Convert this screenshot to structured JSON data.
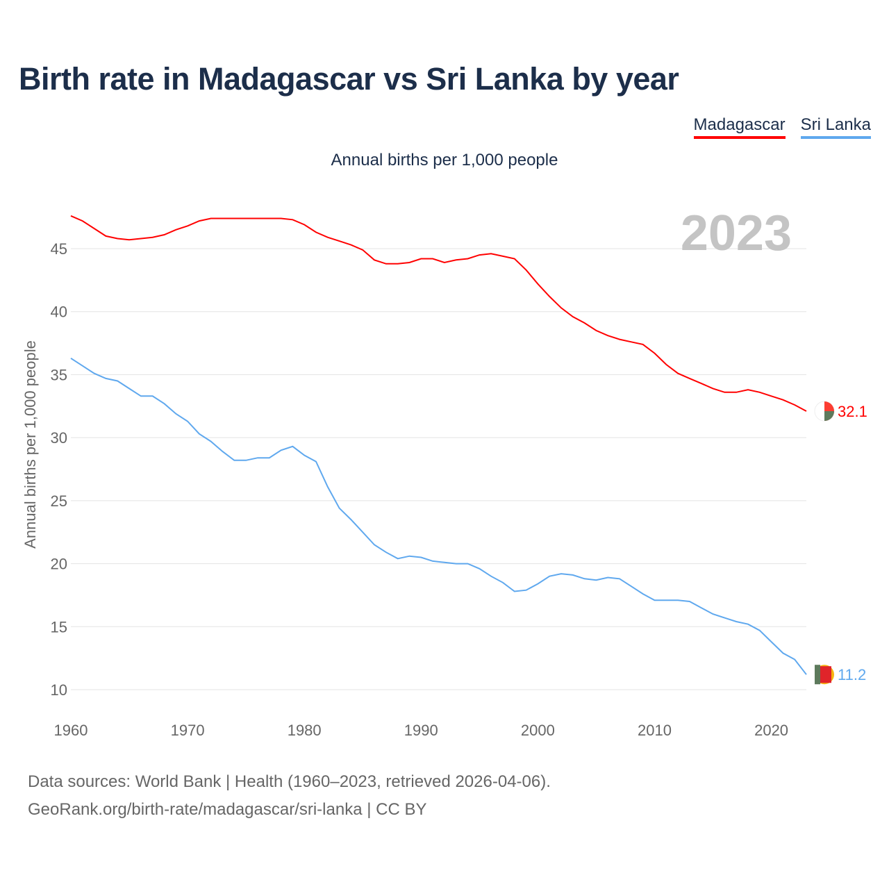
{
  "chart_data": {
    "type": "line",
    "title": "Birth rate in Madagascar vs Sri Lanka by year",
    "subtitle": "Annual births per 1,000 people",
    "ylabel": "Annual births per 1,000 people",
    "xlabel": "",
    "year_label": "2023",
    "xlim": [
      1960,
      2023
    ],
    "ylim": [
      10,
      47.6
    ],
    "x_ticks": [
      1960,
      1970,
      1980,
      1990,
      2000,
      2010,
      2020
    ],
    "y_ticks": [
      10,
      15,
      20,
      25,
      30,
      35,
      40,
      45
    ],
    "grid": true,
    "legend_position": "top-right",
    "x_start": 1960,
    "series": [
      {
        "name": "Madagascar",
        "color": "#ff0000",
        "end_label": "32.1",
        "values": [
          47.6,
          47.2,
          46.6,
          46.0,
          45.8,
          45.7,
          45.8,
          45.9,
          46.1,
          46.5,
          46.8,
          47.2,
          47.4,
          47.4,
          47.4,
          47.4,
          47.4,
          47.4,
          47.4,
          47.3,
          46.9,
          46.3,
          45.9,
          45.6,
          45.3,
          44.9,
          44.1,
          43.8,
          43.8,
          43.9,
          44.2,
          44.2,
          43.9,
          44.1,
          44.2,
          44.5,
          44.6,
          44.4,
          44.2,
          43.3,
          42.2,
          41.2,
          40.3,
          39.6,
          39.1,
          38.5,
          38.1,
          37.8,
          37.6,
          37.4,
          36.7,
          35.8,
          35.1,
          34.7,
          34.3,
          33.9,
          33.6,
          33.6,
          33.8,
          33.6,
          33.3,
          33.0,
          32.6,
          32.1
        ]
      },
      {
        "name": "Sri Lanka",
        "color": "#5fa8ee",
        "end_label": "11.2",
        "values": [
          36.3,
          35.7,
          35.1,
          34.7,
          34.5,
          33.9,
          33.3,
          33.3,
          32.7,
          31.9,
          31.3,
          30.3,
          29.7,
          28.9,
          28.2,
          28.2,
          28.4,
          28.4,
          29.0,
          29.3,
          28.6,
          28.1,
          26.1,
          24.4,
          23.5,
          22.5,
          21.5,
          20.9,
          20.4,
          20.6,
          20.5,
          20.2,
          20.1,
          20.0,
          20.0,
          19.6,
          19.0,
          18.5,
          17.8,
          17.9,
          18.4,
          19.0,
          19.2,
          19.1,
          18.8,
          18.7,
          18.9,
          18.8,
          18.2,
          17.6,
          17.1,
          17.1,
          17.1,
          17.0,
          16.5,
          16.0,
          15.7,
          15.4,
          15.2,
          14.7,
          13.8,
          12.9,
          12.4,
          11.2
        ]
      }
    ]
  },
  "footer": {
    "line1": "Data sources: World Bank | Health (1960–2023, retrieved 2026-04-06).",
    "line2": "GeoRank.org/birth-rate/madagascar/sri-lanka | CC BY"
  }
}
